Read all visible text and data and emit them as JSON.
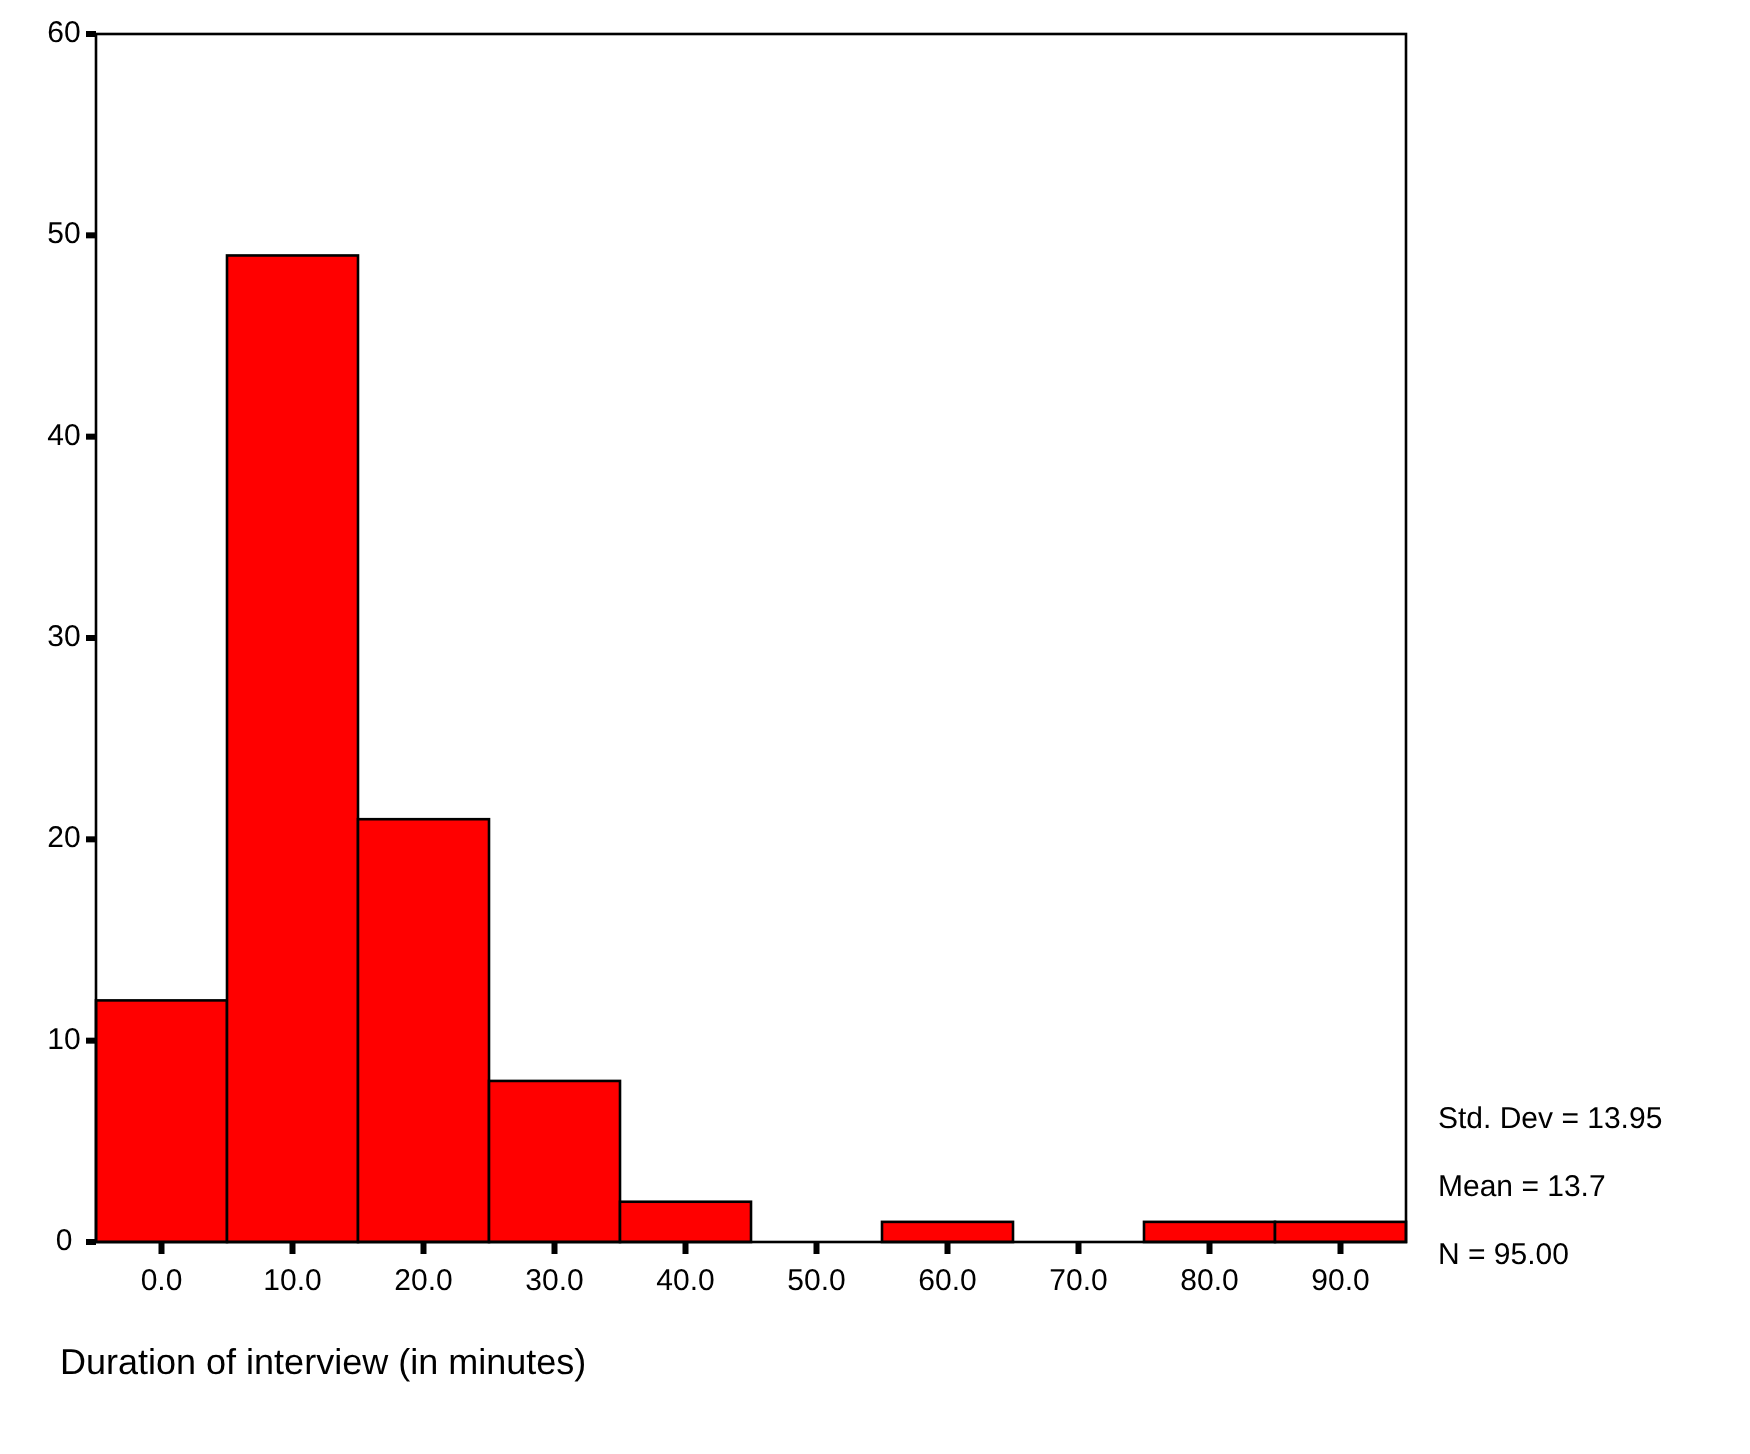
{
  "chart_data": {
    "type": "histogram",
    "xlabel": "Duration of interview (in minutes)",
    "bins": [
      -5,
      5,
      15,
      25,
      35,
      45,
      55,
      65,
      75,
      85,
      95
    ],
    "values": [
      12,
      49,
      21,
      8,
      2,
      0,
      1,
      0,
      1,
      1
    ],
    "color": "#ff0000",
    "xlim": [
      -5,
      95
    ],
    "xticks": [
      {
        "value": 0,
        "label": "0.0"
      },
      {
        "value": 10,
        "label": "10.0"
      },
      {
        "value": 20,
        "label": "20.0"
      },
      {
        "value": 30,
        "label": "30.0"
      },
      {
        "value": 40,
        "label": "40.0"
      },
      {
        "value": 50,
        "label": "50.0"
      },
      {
        "value": 60,
        "label": "60.0"
      },
      {
        "value": 70,
        "label": "70.0"
      },
      {
        "value": 80,
        "label": "80.0"
      },
      {
        "value": 90,
        "label": "90.0"
      }
    ],
    "ylim": [
      0,
      60
    ],
    "yticks": [
      0,
      10,
      20,
      30,
      40,
      50,
      60
    ],
    "annotations": [
      "Std. Dev = 13.95",
      "Mean = 13.7",
      "N = 95.00"
    ]
  }
}
